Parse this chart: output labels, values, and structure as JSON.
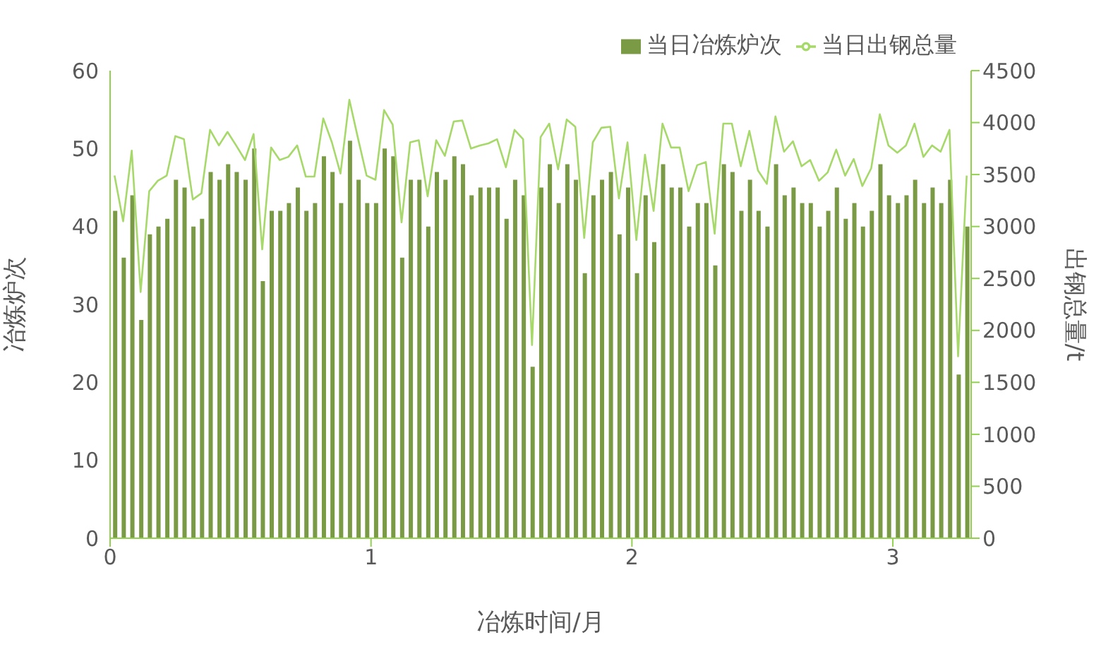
{
  "chart_data": {
    "type": "bar",
    "xlabel": "冶炼时间/月",
    "ylabel": "冶炼炉次",
    "y2label": "出钢总量/t",
    "x": [
      0.017,
      0.05,
      0.083,
      0.117,
      0.15,
      0.183,
      0.217,
      0.25,
      0.283,
      0.317,
      0.35,
      0.383,
      0.417,
      0.45,
      0.483,
      0.517,
      0.55,
      0.583,
      0.617,
      0.65,
      0.683,
      0.717,
      0.75,
      0.783,
      0.817,
      0.85,
      0.883,
      0.917,
      0.95,
      0.983,
      1.017,
      1.05,
      1.083,
      1.117,
      1.15,
      1.183,
      1.217,
      1.25,
      1.283,
      1.317,
      1.35,
      1.383,
      1.417,
      1.45,
      1.483,
      1.517,
      1.55,
      1.583,
      1.617,
      1.65,
      1.683,
      1.717,
      1.75,
      1.783,
      1.817,
      1.85,
      1.883,
      1.917,
      1.95,
      1.983,
      2.017,
      2.05,
      2.083,
      2.117,
      2.15,
      2.183,
      2.217,
      2.25,
      2.283,
      2.317,
      2.35,
      2.383,
      2.417,
      2.45,
      2.483,
      2.517,
      2.55,
      2.583,
      2.617,
      2.65,
      2.683,
      2.717,
      2.75,
      2.783,
      2.817,
      2.85,
      2.883,
      2.917,
      2.95,
      2.983,
      3.017,
      3.05,
      3.083,
      3.117,
      3.15,
      3.183,
      3.217,
      3.25,
      3.283
    ],
    "series": [
      {
        "name": "当日冶炼炉次",
        "color": "#7a9a45",
        "values": [
          42,
          36,
          44,
          28,
          39,
          40,
          41,
          46,
          45,
          40,
          41,
          47,
          46,
          48,
          47,
          46,
          50,
          33,
          42,
          42,
          43,
          45,
          42,
          43,
          49,
          47,
          43,
          51,
          46,
          43,
          43,
          50,
          49,
          36,
          46,
          46,
          40,
          47,
          46,
          49,
          48,
          44,
          45,
          45,
          45,
          41,
          46,
          44,
          22,
          45,
          48,
          43,
          48,
          46,
          34,
          44,
          46,
          47,
          39,
          45,
          34,
          44,
          38,
          48,
          45,
          45,
          40,
          43,
          43,
          35,
          48,
          47,
          42,
          46,
          42,
          40,
          48,
          44,
          45,
          43,
          43,
          40,
          42,
          45,
          41,
          43,
          40,
          42,
          48,
          44,
          43,
          44,
          46,
          43,
          45,
          43,
          46,
          21,
          40
        ]
      },
      {
        "name": "当日出钢总量",
        "type": "line",
        "axis": "y2",
        "color": "#a6d96a",
        "values": [
          3490,
          3050,
          3730,
          2370,
          3340,
          3440,
          3490,
          3870,
          3840,
          3260,
          3320,
          3930,
          3780,
          3910,
          3780,
          3640,
          3890,
          2780,
          3760,
          3640,
          3670,
          3780,
          3480,
          3480,
          4040,
          3810,
          3510,
          4220,
          3850,
          3490,
          3450,
          4120,
          3980,
          3040,
          3810,
          3830,
          3290,
          3830,
          3680,
          4010,
          4020,
          3750,
          3780,
          3800,
          3840,
          3570,
          3930,
          3840,
          1860,
          3860,
          3990,
          3550,
          4030,
          3960,
          2890,
          3810,
          3950,
          3960,
          3270,
          3810,
          2870,
          3690,
          3150,
          3990,
          3760,
          3760,
          3340,
          3590,
          3620,
          2930,
          3990,
          3990,
          3580,
          3920,
          3540,
          3410,
          4060,
          3720,
          3820,
          3580,
          3640,
          3440,
          3520,
          3740,
          3490,
          3650,
          3390,
          3560,
          4080,
          3780,
          3710,
          3780,
          3990,
          3670,
          3780,
          3720,
          3930,
          1750,
          3490
        ]
      }
    ],
    "xlim": [
      0,
      3.3
    ],
    "xticks": [
      0,
      1,
      2,
      3
    ],
    "ylim": [
      0,
      60
    ],
    "yticks": [
      0,
      10,
      20,
      30,
      40,
      50,
      60
    ],
    "y2lim": [
      0,
      4500
    ],
    "y2ticks": [
      0,
      500,
      1000,
      1500,
      2000,
      2500,
      3000,
      3500,
      4000,
      4500
    ],
    "grid": false,
    "legend": "top right",
    "marker": "none",
    "line_style": "solid"
  }
}
